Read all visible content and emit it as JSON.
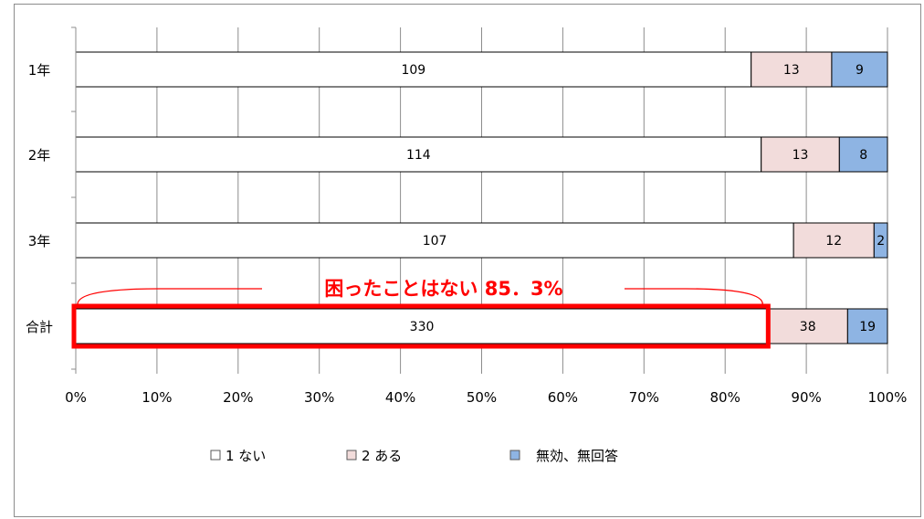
{
  "chart_data": {
    "type": "bar",
    "orientation": "horizontal",
    "stacked": "percent",
    "categories": [
      "1年",
      "2年",
      "3年",
      "合計"
    ],
    "series": [
      {
        "name": "1 ない",
        "values": [
          109,
          114,
          107,
          330
        ],
        "color": "#ffffff"
      },
      {
        "name": "2 ある",
        "values": [
          13,
          13,
          12,
          38
        ],
        "color": "#f2dcdb"
      },
      {
        "name": "無効、無回答",
        "values": [
          9,
          8,
          2,
          19
        ],
        "color": "#8eb4e3"
      }
    ],
    "xlim": [
      0,
      100
    ],
    "xticks": [
      "0%",
      "10%",
      "20%",
      "30%",
      "40%",
      "50%",
      "60%",
      "70%",
      "80%",
      "90%",
      "100%"
    ],
    "grid": true,
    "legend": "bottom",
    "annotation": {
      "text": "困ったことはない  85．3%",
      "color": "#ff0000",
      "highlighted_category": "合計",
      "highlighted_share": 85.3
    }
  }
}
